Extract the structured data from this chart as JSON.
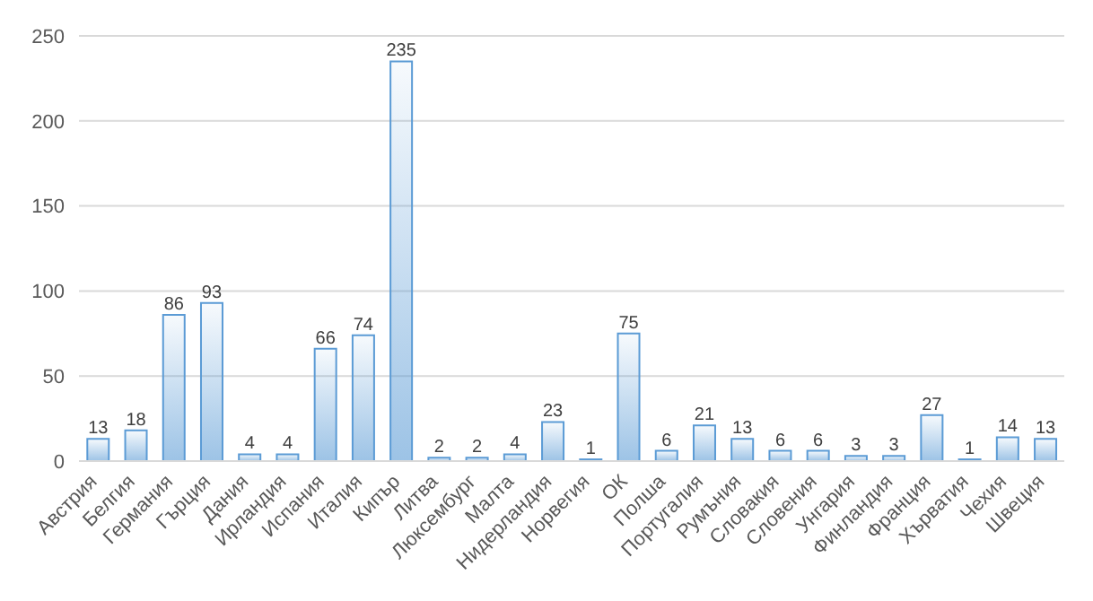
{
  "chart_data": {
    "type": "bar",
    "categories": [
      "Австрия",
      "Белгия",
      "Германия",
      "Гърция",
      "Дания",
      "Ирландия",
      "Испания",
      "Италия",
      "Кипър",
      "Литва",
      "Люксембург",
      "Малта",
      "Нидерландия",
      "Норвегия",
      "ОК",
      "Полша",
      "Португалия",
      "Румъния",
      "Словакия",
      "Словения",
      "Унгария",
      "Финландия",
      "Франция",
      "Хърватия",
      "Чехия",
      "Швеция"
    ],
    "values": [
      13,
      18,
      86,
      93,
      4,
      4,
      66,
      74,
      235,
      2,
      2,
      4,
      23,
      1,
      75,
      6,
      21,
      13,
      6,
      6,
      3,
      3,
      27,
      1,
      14,
      13
    ],
    "color": "#5b9bd5",
    "ylim": [
      0,
      250
    ],
    "yticks": [
      0,
      50,
      100,
      150,
      200,
      250
    ],
    "grid": "y",
    "data_labels": true
  }
}
